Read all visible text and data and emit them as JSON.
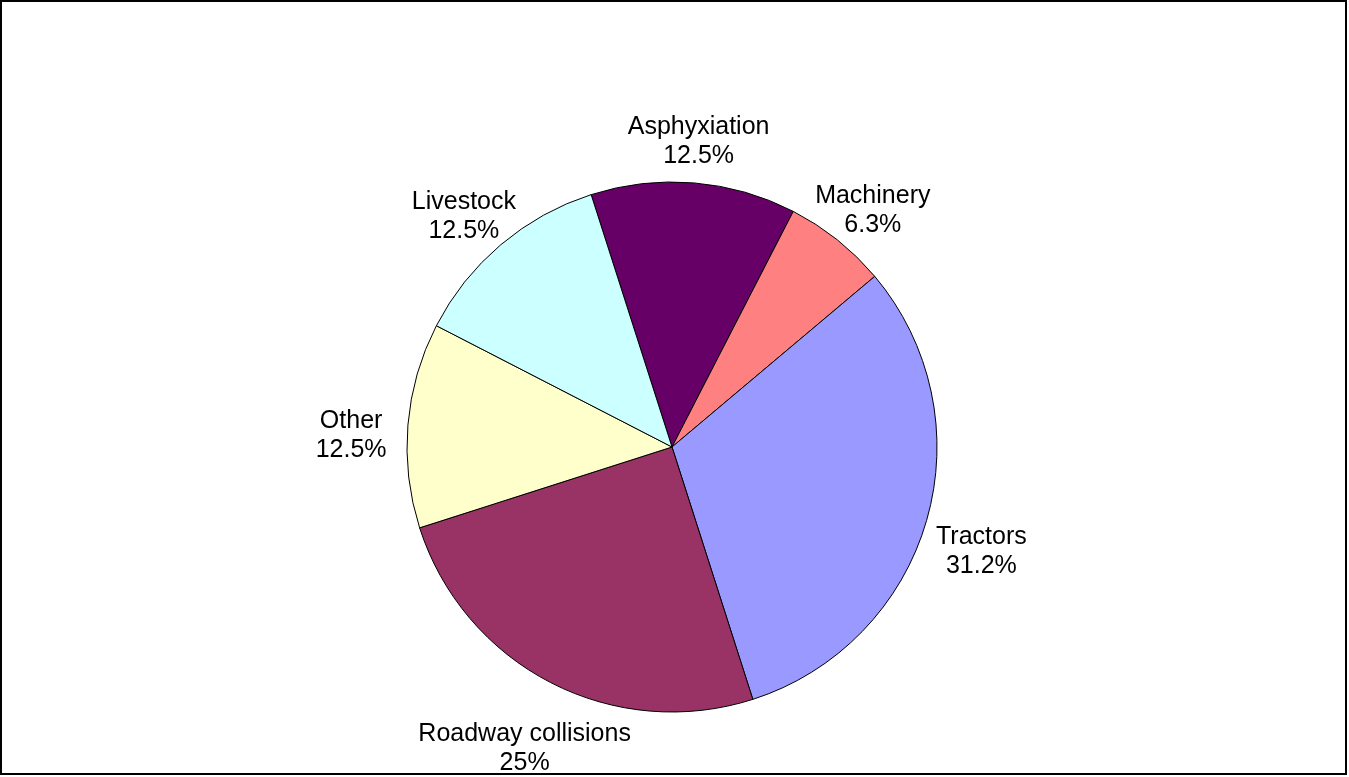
{
  "chart_data": {
    "type": "pie",
    "categories": [
      "Asphyxiation",
      "Machinery",
      "Tractors",
      "Roadway collisions",
      "Other",
      "Livestock"
    ],
    "values": [
      12.5,
      6.3,
      31.2,
      25,
      12.5,
      12.5
    ],
    "value_labels": [
      "12.5%",
      "6.3%",
      "31.2%",
      "25%",
      "12.5%",
      "12.5%"
    ],
    "colors": [
      "#660066",
      "#ff8080",
      "#9999ff",
      "#993366",
      "#ffffcc",
      "#ccffff"
    ]
  }
}
